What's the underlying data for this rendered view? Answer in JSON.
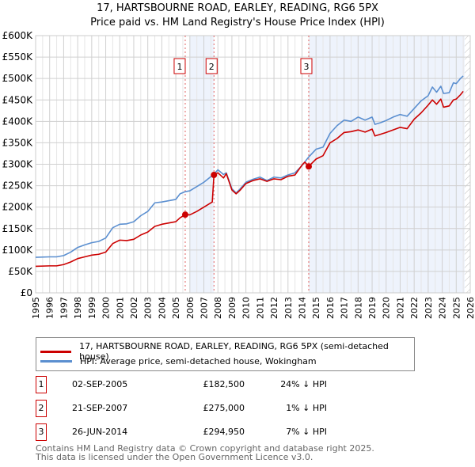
{
  "chart_data": {
    "type": "line",
    "title": "17, HARTSBOURNE ROAD, EARLEY, READING, RG6 5PX",
    "subtitle": "Price paid vs. HM Land Registry's House Price Index (HPI)",
    "xlim": [
      1995,
      2026
    ],
    "ylim": [
      0,
      600000
    ],
    "x_ticks": [
      "1995",
      "1996",
      "1997",
      "1998",
      "1999",
      "2000",
      "2001",
      "2002",
      "2003",
      "2004",
      "2005",
      "2006",
      "2007",
      "2008",
      "2009",
      "2010",
      "2011",
      "2012",
      "2013",
      "2014",
      "2015",
      "2016",
      "2017",
      "2018",
      "2019",
      "2020",
      "2021",
      "2022",
      "2023",
      "2024",
      "2025",
      "2026"
    ],
    "y_ticks": [
      {
        "v": 0,
        "label": "£0"
      },
      {
        "v": 50000,
        "label": "£50K"
      },
      {
        "v": 100000,
        "label": "£100K"
      },
      {
        "v": 150000,
        "label": "£150K"
      },
      {
        "v": 200000,
        "label": "£200K"
      },
      {
        "v": 250000,
        "label": "£250K"
      },
      {
        "v": 300000,
        "label": "£300K"
      },
      {
        "v": 350000,
        "label": "£350K"
      },
      {
        "v": 400000,
        "label": "£400K"
      },
      {
        "v": 450000,
        "label": "£450K"
      },
      {
        "v": 500000,
        "label": "£500K"
      },
      {
        "v": 550000,
        "label": "£550K"
      },
      {
        "v": 600000,
        "label": "£600K"
      }
    ],
    "grid": true,
    "shaded_ranges": [
      [
        2006.0,
        2007.72
      ],
      [
        2014.48,
        2025.6
      ]
    ],
    "projection_start": 2025.6,
    "series": [
      {
        "name": "17, HARTSBOURNE ROAD, EARLEY, READING, RG6 5PX (semi-detached house)",
        "color": "#cc0000",
        "points": [
          [
            1995,
            62000
          ],
          [
            1996,
            63000
          ],
          [
            1996.5,
            63000
          ],
          [
            1997,
            66000
          ],
          [
            1997.5,
            72000
          ],
          [
            1998,
            80000
          ],
          [
            1998.5,
            84000
          ],
          [
            1999,
            88000
          ],
          [
            1999.5,
            90000
          ],
          [
            2000,
            95000
          ],
          [
            2000.5,
            115000
          ],
          [
            2001,
            123000
          ],
          [
            2001.5,
            122000
          ],
          [
            2002,
            125000
          ],
          [
            2002.5,
            135000
          ],
          [
            2003,
            142000
          ],
          [
            2003.5,
            155000
          ],
          [
            2004,
            160000
          ],
          [
            2004.5,
            163000
          ],
          [
            2005,
            166000
          ],
          [
            2005.3,
            175000
          ],
          [
            2005.67,
            182500
          ],
          [
            2006,
            182000
          ],
          [
            2006.5,
            190000
          ],
          [
            2007,
            200000
          ],
          [
            2007.6,
            212000
          ],
          [
            2007.72,
            275000
          ],
          [
            2008,
            280000
          ],
          [
            2008.4,
            268000
          ],
          [
            2008.6,
            278000
          ],
          [
            2009,
            240000
          ],
          [
            2009.3,
            231000
          ],
          [
            2009.6,
            240000
          ],
          [
            2010,
            255000
          ],
          [
            2010.5,
            262000
          ],
          [
            2011,
            266000
          ],
          [
            2011.5,
            260000
          ],
          [
            2012,
            266000
          ],
          [
            2012.5,
            264000
          ],
          [
            2013,
            272000
          ],
          [
            2013.5,
            275000
          ],
          [
            2014,
            298000
          ],
          [
            2014.2,
            305000
          ],
          [
            2014.48,
            294950
          ],
          [
            2015,
            312000
          ],
          [
            2015.5,
            320000
          ],
          [
            2016,
            350000
          ],
          [
            2016.5,
            360000
          ],
          [
            2017,
            374000
          ],
          [
            2017.5,
            376000
          ],
          [
            2018,
            380000
          ],
          [
            2018.5,
            375000
          ],
          [
            2019,
            382000
          ],
          [
            2019.2,
            366000
          ],
          [
            2019.6,
            370000
          ],
          [
            2020,
            374000
          ],
          [
            2020.5,
            380000
          ],
          [
            2021,
            386000
          ],
          [
            2021.5,
            383000
          ],
          [
            2022,
            405000
          ],
          [
            2022.5,
            420000
          ],
          [
            2023,
            438000
          ],
          [
            2023.3,
            450000
          ],
          [
            2023.6,
            440000
          ],
          [
            2023.9,
            452000
          ],
          [
            2024.1,
            433000
          ],
          [
            2024.5,
            436000
          ],
          [
            2024.8,
            450000
          ],
          [
            2025,
            452000
          ],
          [
            2025.3,
            462000
          ],
          [
            2025.5,
            470000
          ]
        ]
      },
      {
        "name": "HPI: Average price, semi-detached house, Wokingham",
        "color": "#5b8fd0",
        "points": [
          [
            1995,
            83000
          ],
          [
            1996,
            84000
          ],
          [
            1996.5,
            84000
          ],
          [
            1997,
            87000
          ],
          [
            1997.5,
            95000
          ],
          [
            1998,
            106000
          ],
          [
            1998.5,
            112000
          ],
          [
            1999,
            117000
          ],
          [
            1999.5,
            120000
          ],
          [
            2000,
            128000
          ],
          [
            2000.5,
            152000
          ],
          [
            2001,
            160000
          ],
          [
            2001.5,
            161000
          ],
          [
            2002,
            166000
          ],
          [
            2002.5,
            180000
          ],
          [
            2003,
            190000
          ],
          [
            2003.5,
            210000
          ],
          [
            2004,
            212000
          ],
          [
            2004.5,
            215000
          ],
          [
            2005,
            218000
          ],
          [
            2005.3,
            231000
          ],
          [
            2005.67,
            236000
          ],
          [
            2006,
            238000
          ],
          [
            2006.5,
            248000
          ],
          [
            2007,
            258000
          ],
          [
            2007.72,
            277000
          ],
          [
            2008,
            287000
          ],
          [
            2008.4,
            276000
          ],
          [
            2008.6,
            280000
          ],
          [
            2009,
            243000
          ],
          [
            2009.3,
            233000
          ],
          [
            2009.6,
            243000
          ],
          [
            2010,
            258000
          ],
          [
            2010.5,
            265000
          ],
          [
            2011,
            270000
          ],
          [
            2011.5,
            262000
          ],
          [
            2012,
            270000
          ],
          [
            2012.5,
            268000
          ],
          [
            2013,
            275000
          ],
          [
            2013.5,
            280000
          ],
          [
            2014,
            297000
          ],
          [
            2014.48,
            317000
          ],
          [
            2015,
            335000
          ],
          [
            2015.5,
            340000
          ],
          [
            2016,
            372000
          ],
          [
            2016.5,
            390000
          ],
          [
            2017,
            403000
          ],
          [
            2017.5,
            400000
          ],
          [
            2018,
            410000
          ],
          [
            2018.5,
            403000
          ],
          [
            2019,
            410000
          ],
          [
            2019.2,
            393000
          ],
          [
            2019.6,
            397000
          ],
          [
            2020,
            402000
          ],
          [
            2020.5,
            410000
          ],
          [
            2021,
            416000
          ],
          [
            2021.5,
            412000
          ],
          [
            2022,
            430000
          ],
          [
            2022.5,
            448000
          ],
          [
            2023,
            460000
          ],
          [
            2023.3,
            480000
          ],
          [
            2023.6,
            468000
          ],
          [
            2023.9,
            482000
          ],
          [
            2024.1,
            465000
          ],
          [
            2024.5,
            467000
          ],
          [
            2024.8,
            490000
          ],
          [
            2025,
            488000
          ],
          [
            2025.3,
            500000
          ],
          [
            2025.5,
            506000
          ]
        ]
      }
    ],
    "sales": [
      {
        "label": "1",
        "x": 2005.67,
        "price": 182500
      },
      {
        "label": "2",
        "x": 2007.72,
        "price": 275000
      },
      {
        "label": "3",
        "x": 2014.48,
        "price": 294950
      }
    ]
  },
  "legend": {
    "property": "17, HARTSBOURNE ROAD, EARLEY, READING, RG6 5PX (semi-detached house)",
    "hpi": "HPI: Average price, semi-detached house, Wokingham"
  },
  "sales_table": [
    {
      "num": "1",
      "date": "02-SEP-2005",
      "price": "£182,500",
      "diff": "24% ↓ HPI"
    },
    {
      "num": "2",
      "date": "21-SEP-2007",
      "price": "£275,000",
      "diff": "1% ↓ HPI"
    },
    {
      "num": "3",
      "date": "26-JUN-2014",
      "price": "£294,950",
      "diff": "7% ↓ HPI"
    }
  ],
  "footer": {
    "line1": "Contains HM Land Registry data © Crown copyright and database right 2025.",
    "line2": "This data is licensed under the Open Government Licence v3.0."
  }
}
